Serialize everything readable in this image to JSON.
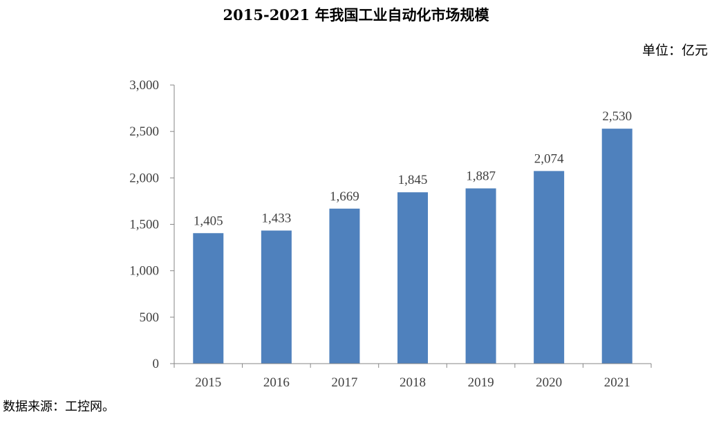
{
  "chart_data": {
    "type": "bar",
    "title": "2015-2021 年我国工业自动化市场规模",
    "unit_label": "单位：亿元",
    "source": "数据来源：工控网。",
    "categories": [
      "2015",
      "2016",
      "2017",
      "2018",
      "2019",
      "2020",
      "2021"
    ],
    "values": [
      1405,
      1433,
      1669,
      1845,
      1887,
      2074,
      2530
    ],
    "value_labels": [
      "1,405",
      "1,433",
      "1,669",
      "1,845",
      "1,887",
      "2,074",
      "2,530"
    ],
    "yticks": [
      0,
      500,
      1000,
      1500,
      2000,
      2500,
      3000
    ],
    "ytick_labels": [
      "0",
      "500",
      "1,000",
      "1,500",
      "2,000",
      "2,500",
      "3,000"
    ],
    "ylim": [
      0,
      3000
    ],
    "xlabel": "",
    "ylabel": "",
    "grid": false,
    "legend": "none",
    "bar_color": "#4F81BD",
    "axis_color": "#868686"
  }
}
